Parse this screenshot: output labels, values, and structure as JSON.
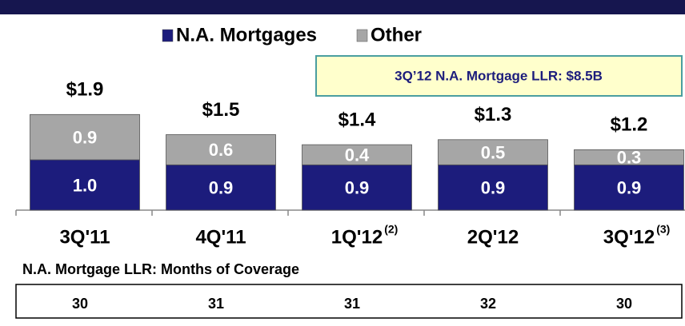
{
  "chart_data": {
    "type": "stacked-bar",
    "categories": [
      "3Q'11",
      "4Q'11",
      "1Q'12",
      "2Q'12",
      "3Q'12"
    ],
    "category_notes": [
      null,
      null,
      "(2)",
      null,
      "(3)"
    ],
    "series": [
      {
        "name": "N.A. Mortgages",
        "color": "#1c1c7c",
        "values": [
          1.0,
          0.9,
          0.9,
          0.9,
          0.9
        ],
        "value_labels": [
          "1.0",
          "0.9",
          "0.9",
          "0.9",
          "0.9"
        ]
      },
      {
        "name": "Other",
        "color": "#a6a6a6",
        "values": [
          0.9,
          0.6,
          0.4,
          0.5,
          0.3
        ],
        "value_labels": [
          "0.9",
          "0.6",
          "0.4",
          "0.5",
          "0.3"
        ]
      }
    ],
    "totals": [
      1.9,
      1.5,
      1.4,
      1.3,
      1.2
    ],
    "total_labels": [
      "$1.9",
      "$1.5",
      "$1.4",
      "$1.3",
      "$1.2"
    ],
    "annotation": "3Q’12 N.A. Mortgage LLR: $8.5B",
    "table": {
      "title": "N.A. Mortgage LLR: Months of Coverage",
      "values": [
        30,
        31,
        31,
        32,
        30
      ]
    }
  }
}
